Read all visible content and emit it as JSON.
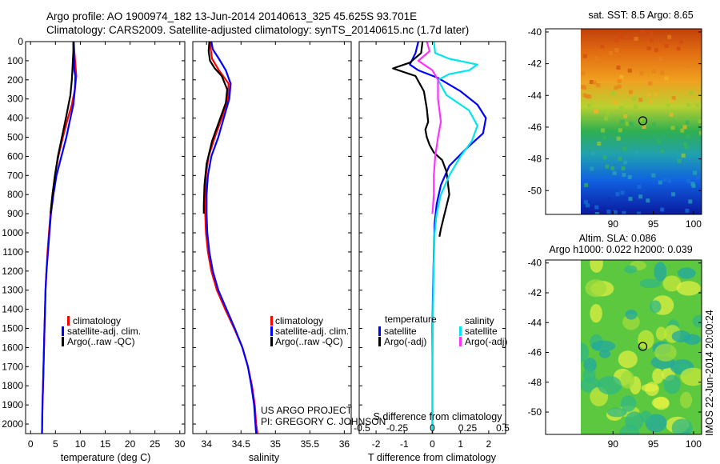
{
  "header": {
    "line1": "Argo profile: AO 1900974_182 13-Jun-2014 20140613_325 45.625S 93.701E",
    "line2": "Climatology: CARS2009. Satellite-adjusted climatology: synTS_20140615.nc (1.7d later)"
  },
  "depth_ticks": [
    0,
    100,
    200,
    300,
    400,
    500,
    600,
    700,
    800,
    900,
    1000,
    1100,
    1200,
    1300,
    1400,
    1500,
    1600,
    1700,
    1800,
    1900,
    2000
  ],
  "colors": {
    "climatology": "#ff0000",
    "satellite": "#0000ff",
    "argo": "#000000",
    "sal_satellite": "#00e5ee",
    "sal_argo": "#ff33ff",
    "marker": "#000000"
  },
  "chart_data": [
    {
      "id": "temperature",
      "type": "line",
      "xlabel": "temperature (deg C)",
      "xlim": [
        -1,
        31
      ],
      "ylim": [
        2050,
        0
      ],
      "xticks": [
        0,
        5,
        10,
        15,
        20,
        25,
        30
      ],
      "legend": {
        "placement": "lower-middle",
        "entries": [
          "climatology",
          "satellite-adj. clim.",
          "Argo(..raw -QC)"
        ]
      },
      "series": [
        {
          "name": "climatology",
          "color": "#ff0000",
          "x": [
            8.7,
            8.8,
            9.1,
            9.2,
            8.9,
            8.3,
            7.5,
            6.5,
            5.6,
            4.9,
            4.4,
            4.0,
            3.7,
            3.4,
            3.2,
            3.0,
            2.9,
            2.8,
            2.7,
            2.6,
            2.5,
            2.4,
            2.3
          ],
          "y": [
            0,
            50,
            150,
            180,
            250,
            330,
            400,
            500,
            600,
            700,
            800,
            900,
            1000,
            1100,
            1200,
            1300,
            1400,
            1500,
            1600,
            1700,
            1800,
            1900,
            2050
          ]
        },
        {
          "name": "satellite-adj. clim.",
          "color": "#0000ff",
          "x": [
            8.6,
            8.7,
            8.8,
            9.0,
            8.9,
            8.6,
            8.0,
            7.2,
            6.2,
            5.2,
            4.6,
            4.1,
            3.8,
            3.5,
            3.2,
            3.0,
            2.9,
            2.8,
            2.7,
            2.6,
            2.5,
            2.4,
            2.3
          ],
          "y": [
            0,
            50,
            150,
            180,
            250,
            330,
            400,
            500,
            600,
            700,
            800,
            900,
            1000,
            1100,
            1200,
            1300,
            1400,
            1500,
            1600,
            1700,
            1800,
            1900,
            2050
          ]
        },
        {
          "name": "Argo(..raw -QC)",
          "color": "#000000",
          "x": [
            8.6,
            8.6,
            8.5,
            8.4,
            8.3,
            8.0,
            7.1,
            6.3,
            5.5,
            4.9,
            4.4,
            4.0
          ],
          "y": [
            0,
            50,
            100,
            150,
            200,
            280,
            400,
            500,
            600,
            700,
            800,
            900
          ]
        }
      ]
    },
    {
      "id": "salinity",
      "type": "line",
      "xlabel": "salinity",
      "xlim": [
        33.8,
        36.1
      ],
      "ylim": [
        2050,
        0
      ],
      "xticks": [
        34,
        34.5,
        35,
        35.5,
        36
      ],
      "xticklabels": [
        "34",
        "34.5",
        "35",
        "35.5",
        "36"
      ],
      "legend": {
        "placement": "lower-middle",
        "entries": [
          "climatology",
          "satellite-adj. clim.",
          "Argo(..raw -QC)"
        ]
      },
      "series": [
        {
          "name": "climatology",
          "color": "#ff0000",
          "x": [
            34.05,
            34.06,
            34.08,
            34.18,
            34.32,
            34.31,
            34.22,
            34.12,
            34.03,
            33.99,
            33.98,
            33.98,
            33.99,
            34.02,
            34.07,
            34.15,
            34.27,
            34.4,
            34.52,
            34.6,
            34.66,
            34.7,
            34.72,
            34.74
          ],
          "y": [
            0,
            40,
            90,
            150,
            220,
            300,
            400,
            500,
            600,
            700,
            800,
            900,
            1000,
            1100,
            1200,
            1300,
            1400,
            1500,
            1600,
            1700,
            1800,
            1900,
            2000,
            2050
          ]
        },
        {
          "name": "satellite-adj. clim.",
          "color": "#0000ff",
          "x": [
            34.07,
            34.09,
            34.18,
            34.28,
            34.35,
            34.33,
            34.25,
            34.17,
            34.07,
            34.02,
            34.0,
            34.0,
            34.01,
            34.04,
            34.09,
            34.17,
            34.29,
            34.41,
            34.52,
            34.6,
            34.65,
            34.69,
            34.71,
            34.72
          ],
          "y": [
            0,
            40,
            90,
            150,
            220,
            300,
            400,
            500,
            600,
            700,
            800,
            900,
            1000,
            1100,
            1200,
            1300,
            1400,
            1500,
            1600,
            1700,
            1800,
            1900,
            2000,
            2050
          ]
        },
        {
          "name": "Argo(..raw -QC)",
          "color": "#000000",
          "x": [
            34.04,
            34.03,
            34.05,
            34.12,
            34.22,
            34.3,
            34.28,
            34.18,
            34.08,
            34.0,
            33.97,
            33.96,
            33.96
          ],
          "y": [
            0,
            50,
            100,
            140,
            180,
            250,
            320,
            420,
            520,
            640,
            750,
            850,
            900
          ]
        }
      ]
    },
    {
      "id": "difference",
      "type": "line",
      "xlabel": "T difference from climatology",
      "x2label": "S difference from climatology",
      "xlim": [
        -2.6,
        2.6
      ],
      "ylim": [
        2050,
        0
      ],
      "xticks": [
        -2,
        -1,
        0,
        1,
        2
      ],
      "x2ticks": [
        -0.5,
        -0.25,
        0,
        0.25,
        0.5
      ],
      "legend": {
        "placement": "lower-middle",
        "temperature_title": "temperature",
        "salinity_title": "salinity",
        "entries_temp": [
          "satellite",
          "Argo(-adj)"
        ],
        "entries_sal": [
          "satellite",
          "Argo(-adj)"
        ]
      },
      "series": [
        {
          "name": "temperature satellite",
          "color": "#0000ff",
          "x": [
            -0.5,
            -0.6,
            -0.8,
            -0.5,
            0.2,
            1.0,
            1.6,
            1.9,
            1.8,
            1.2,
            0.6,
            0.3,
            0.15,
            0.08,
            0.05,
            0.02,
            0.0,
            0.0,
            0.0
          ],
          "y": [
            0,
            60,
            120,
            150,
            190,
            260,
            330,
            400,
            480,
            560,
            650,
            750,
            850,
            950,
            1100,
            1300,
            1500,
            1800,
            2050
          ]
        },
        {
          "name": "temperature Argo(-adj)",
          "color": "#000000",
          "x": [
            -0.35,
            -0.4,
            -0.8,
            -1.4,
            -0.6,
            -0.3,
            -0.2,
            -0.15,
            -0.25,
            -0.2,
            -0.1,
            0.05,
            0.35,
            0.5,
            0.55,
            0.6,
            0.5,
            0.4,
            0.3,
            0.25
          ],
          "y": [
            0,
            60,
            110,
            140,
            180,
            260,
            350,
            420,
            460,
            500,
            540,
            580,
            620,
            680,
            740,
            800,
            860,
            920,
            980,
            1020
          ]
        },
        {
          "name": "salinity satellite",
          "color": "#00e5ee",
          "x": [
            0.05,
            0.1,
            0.6,
            1.6,
            1.3,
            0.6,
            0.2,
            0.5,
            1.3,
            1.6,
            1.4,
            1.0,
            0.6,
            0.3,
            0.15,
            0.08,
            0.04,
            0.02,
            0.0,
            0.0
          ],
          "y": [
            0,
            60,
            90,
            120,
            150,
            170,
            200,
            280,
            360,
            440,
            520,
            600,
            700,
            800,
            900,
            1000,
            1200,
            1400,
            1700,
            2050
          ]
        },
        {
          "name": "salinity Argo(-adj)",
          "color": "#ff33ff",
          "x": [
            -0.2,
            -0.1,
            -0.5,
            -0.3,
            0.0,
            0.2,
            0.2,
            0.3,
            0.2,
            0.1,
            0.05,
            0.05,
            0.0
          ],
          "y": [
            0,
            50,
            100,
            120,
            150,
            200,
            300,
            420,
            500,
            600,
            700,
            800,
            900
          ]
        }
      ]
    },
    {
      "id": "sst-map",
      "type": "heatmap",
      "title": "sat. SST: 8.5 Argo: 8.65",
      "xlim": [
        86,
        101
      ],
      "ylim": [
        -51.5,
        -39.8
      ],
      "xticks": [
        90,
        95,
        100
      ],
      "yticks": [
        -40,
        -42,
        -44,
        -46,
        -48,
        -50
      ],
      "marker": {
        "lon": 93.7,
        "lat": -45.6
      }
    },
    {
      "id": "sla-map",
      "type": "heatmap",
      "title1": "Altim. SLA: 0.086",
      "title2": "Argo h1000: 0.022 h2000: 0.039",
      "xlim": [
        86,
        101
      ],
      "ylim": [
        -51.5,
        -39.8
      ],
      "xticks": [
        90,
        95,
        100
      ],
      "yticks": [
        -40,
        -42,
        -44,
        -46,
        -48,
        -50
      ],
      "marker": {
        "lon": 93.7,
        "lat": -45.6
      }
    }
  ],
  "annotations": {
    "project_line1": "US ARGO PROJECT",
    "project_line2": "PI: GREGORY C. JOHNSON",
    "imos_stamp": "IMOS 22-Jun-2014 20:00:24"
  }
}
